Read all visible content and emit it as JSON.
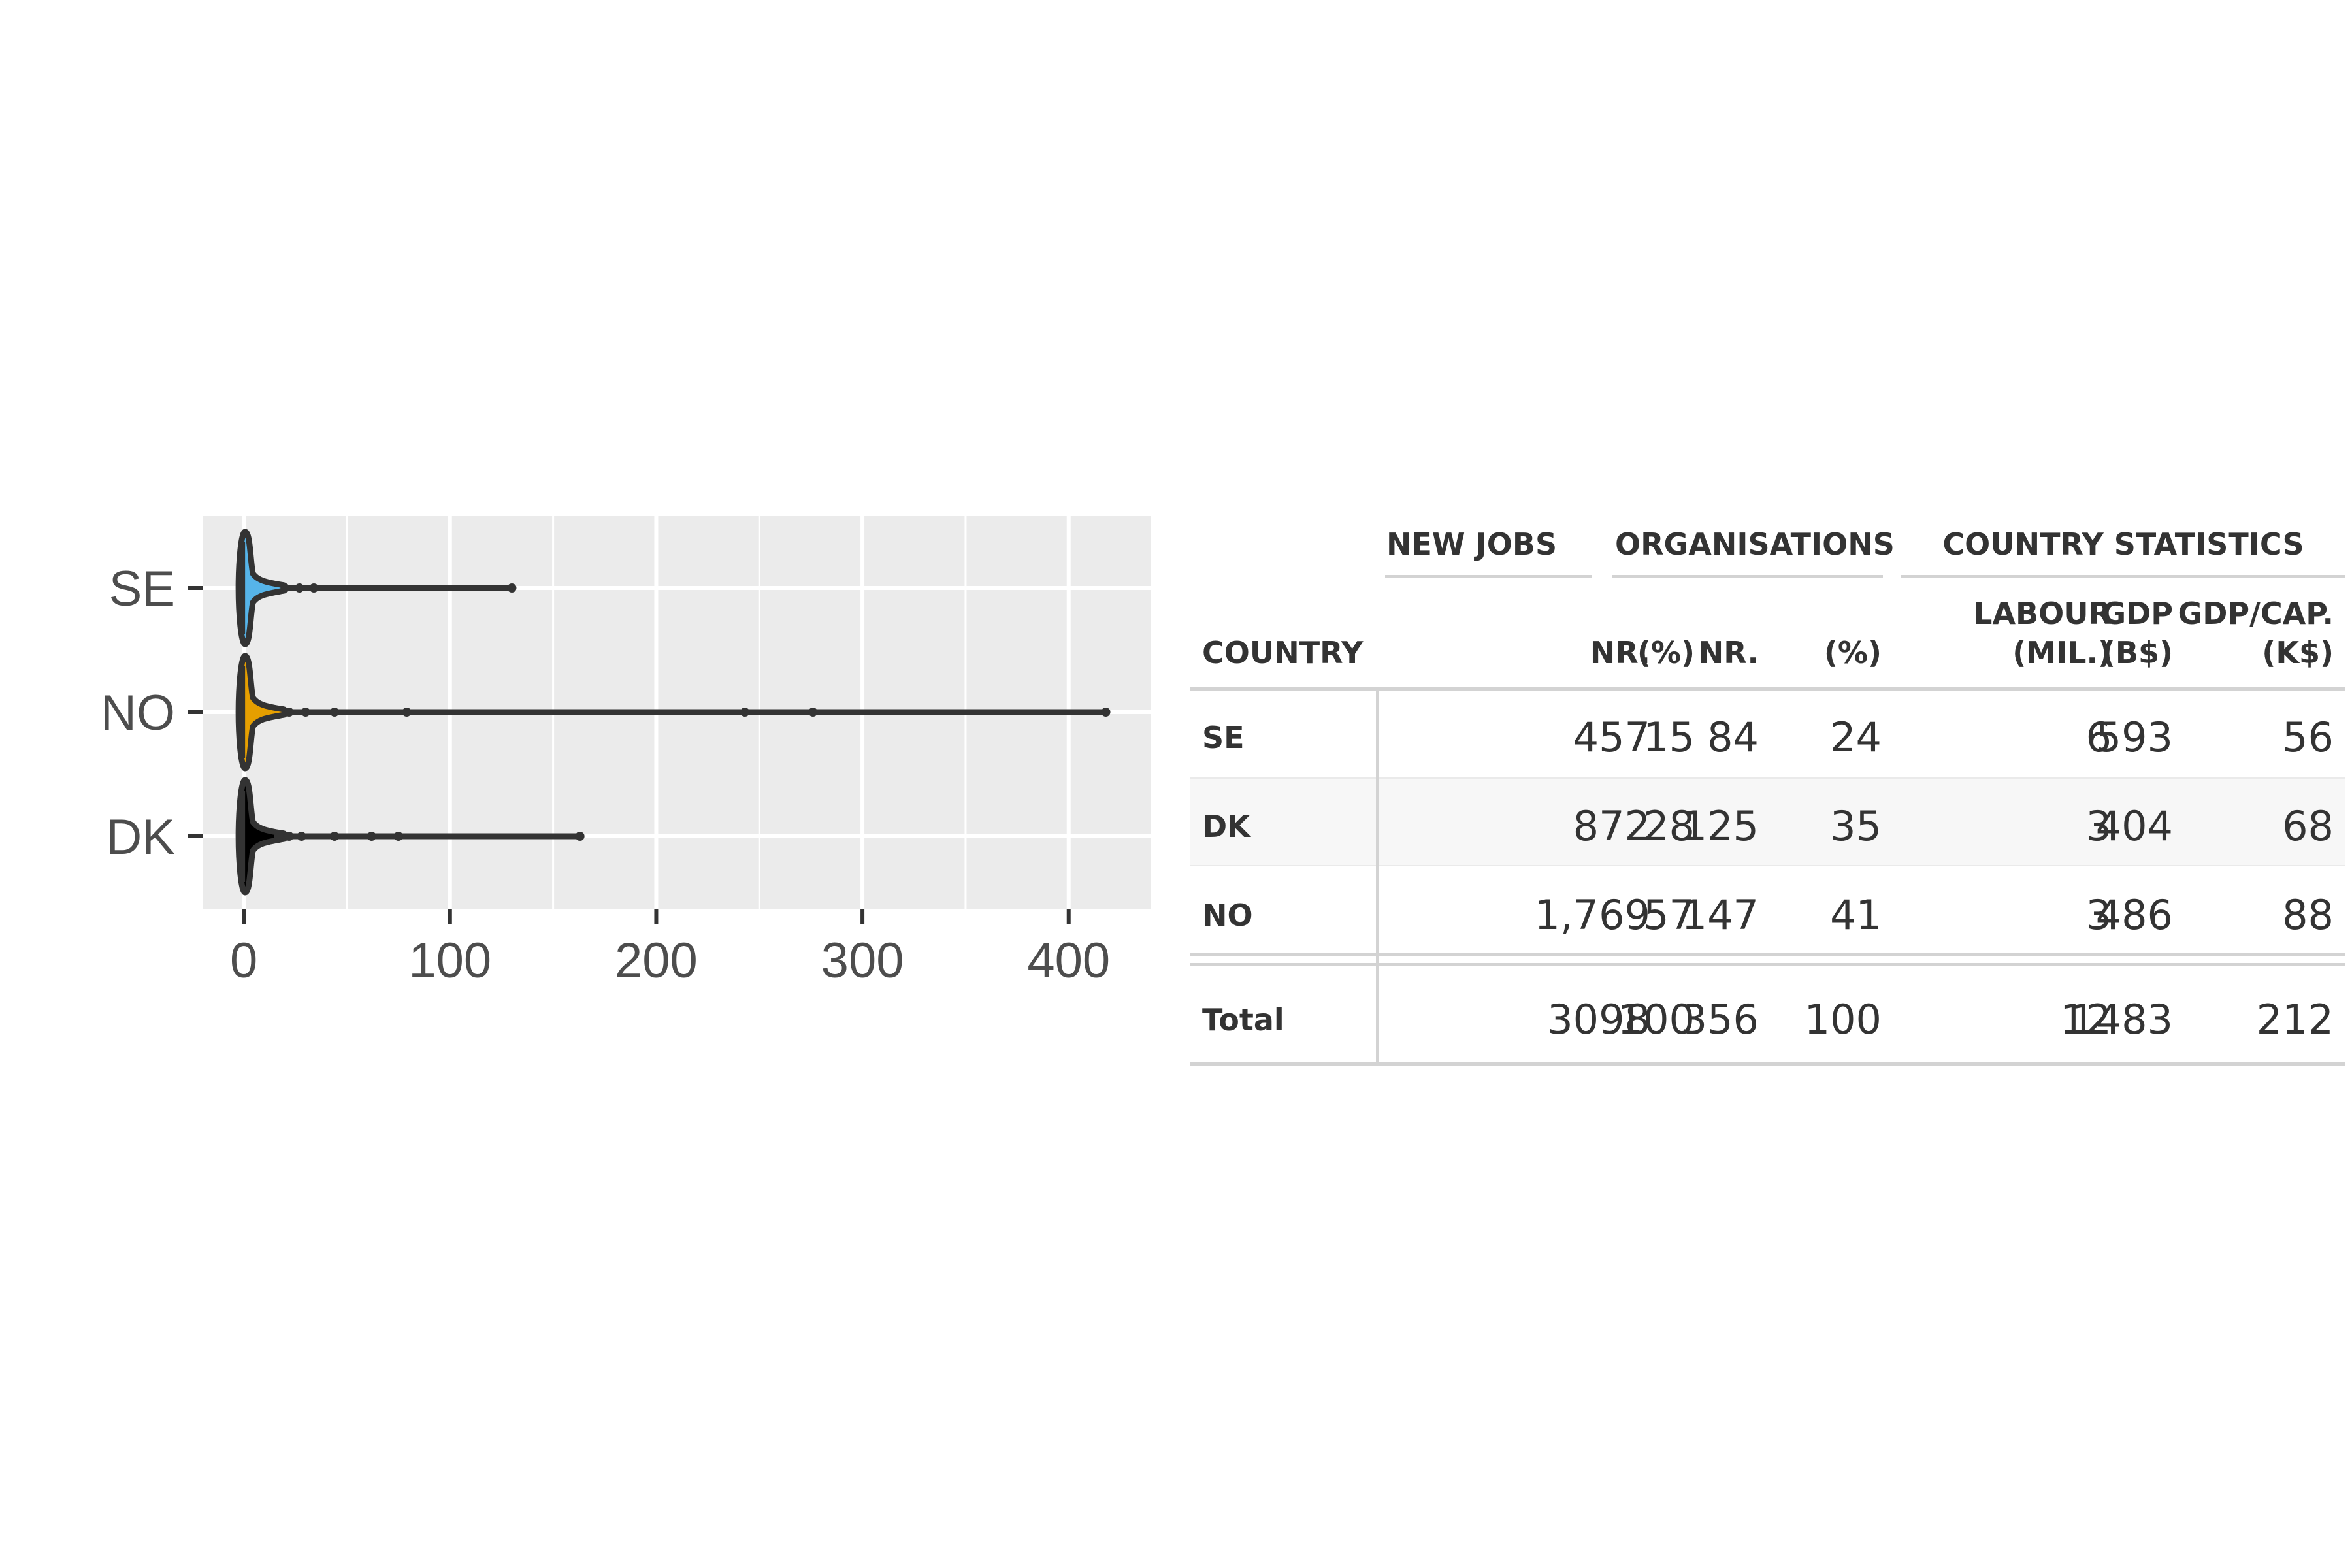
{
  "chart_data": {
    "type": "violin",
    "categories": [
      "SE",
      "NO",
      "DK"
    ],
    "orientation": "horizontal",
    "xlim": [
      -20,
      440
    ],
    "xticks": [
      0,
      100,
      200,
      300,
      400
    ],
    "grid": true,
    "series": [
      {
        "category": "SE",
        "color": "#56B4E9",
        "min": 0,
        "max": 130,
        "outliers": [
          20,
          27,
          34,
          130
        ]
      },
      {
        "category": "NO",
        "color": "#E69F00",
        "min": 0,
        "max": 418,
        "outliers": [
          22,
          30,
          44,
          79,
          243,
          276,
          418
        ]
      },
      {
        "category": "DK",
        "color": "#000000",
        "min": 0,
        "max": 163,
        "outliers": [
          17,
          22,
          28,
          44,
          62,
          75,
          163
        ]
      }
    ]
  },
  "table": {
    "groups": {
      "new_jobs": "NEW JOBS",
      "organisations": "ORGANISATIONS",
      "country_statistics": "COUNTRY STATISTICS"
    },
    "columns": {
      "country": "COUNTRY",
      "jobs_nr": "NR.",
      "jobs_pct": "(%)",
      "org_nr": "NR.",
      "org_pct": "(%)",
      "labour_1": "LABOUR",
      "labour_2": "(MIL.)",
      "gdp_1": "GDP",
      "gdp_2": "(B$)",
      "gdpcap_1": "GDP/CAP.",
      "gdpcap_2": "(K$)"
    },
    "rows": [
      [
        "SE",
        "457",
        "15",
        "84",
        "24",
        "6",
        "593",
        "56"
      ],
      [
        "DK",
        "872",
        "28",
        "125",
        "35",
        "3",
        "404",
        "68"
      ],
      [
        "NO",
        "1,769",
        "57",
        "147",
        "41",
        "3",
        "486",
        "88"
      ]
    ],
    "total": [
      "Total",
      "3098",
      "100",
      "356",
      "100",
      "12",
      "1483",
      "212"
    ]
  }
}
